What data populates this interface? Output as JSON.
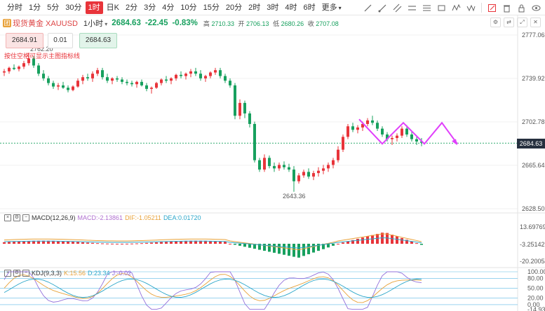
{
  "toolbar": {
    "timeframes": [
      "分时",
      "1分",
      "5分",
      "30分",
      "1时",
      "日K",
      "2分",
      "3分",
      "4分",
      "10分",
      "15分",
      "20分",
      "2时",
      "3时",
      "4时",
      "6时",
      "更多"
    ],
    "active_index": 4
  },
  "header": {
    "symbol": "现货黄金 XAUUSD",
    "interval": "1小时",
    "price": "2684.63",
    "change": "-22.45",
    "change_pct": "-0.83%",
    "high_label": "高",
    "high": "2710.33",
    "open_label": "开",
    "open": "2706.13",
    "low_label": "低",
    "low": "2680.26",
    "close_label": "收",
    "close": "2707.08"
  },
  "trade": {
    "sell": "2684.91",
    "qty": "0.01",
    "buy": "2684.63"
  },
  "hint": "按住空格可显示主图指标线",
  "price_axis": [
    "2777.06",
    "2739.92",
    "2702.78",
    "2665.64",
    "2628.50"
  ],
  "last_price_tag": "2684.63",
  "annotations": {
    "high": "2762.20",
    "low": "2643.36"
  },
  "macd": {
    "name": "MACD(12,26,9)",
    "macd": "MACD:-2.13861",
    "dif": "DIF:-1.05211",
    "dea": "DEA:0.01720",
    "axis": [
      "13.69769",
      "-3.25142",
      "-20.20054"
    ]
  },
  "kdj": {
    "name": "KDJ(9,3,3)",
    "k": "K:15.56",
    "d": "D:23.34",
    "j": "J:-0.02",
    "axis": [
      "100.00",
      "80.00",
      "50.00",
      "20.00",
      "0.00",
      "-14.93"
    ]
  },
  "colors": {
    "up": "#e8343a",
    "down": "#17a05e",
    "projection": "#e040fb"
  },
  "chart_data": {
    "type": "candlestick",
    "ylim": [
      2628.5,
      2777.06
    ],
    "candles": [
      [
        2745,
        2748,
        2742,
        2746
      ],
      [
        2746,
        2750,
        2744,
        2749
      ],
      [
        2749,
        2752,
        2747,
        2748
      ],
      [
        2748,
        2751,
        2746,
        2750
      ],
      [
        2750,
        2755,
        2748,
        2753
      ],
      [
        2753,
        2762,
        2751,
        2757
      ],
      [
        2757,
        2759,
        2749,
        2751
      ],
      [
        2751,
        2753,
        2742,
        2744
      ],
      [
        2744,
        2747,
        2738,
        2740
      ],
      [
        2740,
        2742,
        2734,
        2736
      ],
      [
        2736,
        2738,
        2731,
        2733
      ],
      [
        2733,
        2736,
        2730,
        2734
      ],
      [
        2734,
        2737,
        2731,
        2732
      ],
      [
        2732,
        2734,
        2728,
        2730
      ],
      [
        2730,
        2734,
        2729,
        2733
      ],
      [
        2733,
        2740,
        2732,
        2738
      ],
      [
        2738,
        2743,
        2735,
        2741
      ],
      [
        2741,
        2744,
        2738,
        2740
      ],
      [
        2740,
        2746,
        2737,
        2744
      ],
      [
        2744,
        2749,
        2742,
        2747
      ],
      [
        2747,
        2749,
        2739,
        2741
      ],
      [
        2741,
        2744,
        2736,
        2738
      ],
      [
        2738,
        2741,
        2735,
        2740
      ],
      [
        2740,
        2742,
        2737,
        2739
      ],
      [
        2739,
        2741,
        2735,
        2737
      ],
      [
        2737,
        2739,
        2734,
        2736
      ],
      [
        2736,
        2738,
        2733,
        2735
      ],
      [
        2735,
        2738,
        2732,
        2737
      ],
      [
        2737,
        2739,
        2733,
        2734
      ],
      [
        2734,
        2736,
        2729,
        2731
      ],
      [
        2731,
        2733,
        2727,
        2732
      ],
      [
        2732,
        2737,
        2731,
        2736
      ],
      [
        2736,
        2740,
        2734,
        2739
      ],
      [
        2739,
        2742,
        2736,
        2738
      ],
      [
        2738,
        2741,
        2735,
        2740
      ],
      [
        2740,
        2744,
        2738,
        2743
      ],
      [
        2743,
        2746,
        2740,
        2742
      ],
      [
        2742,
        2745,
        2739,
        2744
      ],
      [
        2744,
        2748,
        2741,
        2746
      ],
      [
        2746,
        2749,
        2742,
        2744
      ],
      [
        2744,
        2747,
        2738,
        2740
      ],
      [
        2740,
        2743,
        2737,
        2742
      ],
      [
        2742,
        2746,
        2740,
        2745
      ],
      [
        2745,
        2749,
        2743,
        2747
      ],
      [
        2747,
        2749,
        2740,
        2742
      ],
      [
        2742,
        2744,
        2736,
        2738
      ],
      [
        2738,
        2740,
        2732,
        2734
      ],
      [
        2734,
        2736,
        2705,
        2708
      ],
      [
        2708,
        2722,
        2705,
        2719
      ],
      [
        2719,
        2721,
        2706,
        2710
      ],
      [
        2710,
        2712,
        2698,
        2701
      ],
      [
        2701,
        2703,
        2668,
        2670
      ],
      [
        2670,
        2672,
        2660,
        2662
      ],
      [
        2662,
        2675,
        2660,
        2672
      ],
      [
        2672,
        2674,
        2663,
        2665
      ],
      [
        2665,
        2668,
        2660,
        2663
      ],
      [
        2663,
        2668,
        2661,
        2666
      ],
      [
        2666,
        2669,
        2662,
        2664
      ],
      [
        2664,
        2667,
        2660,
        2662
      ],
      [
        2662,
        2665,
        2643,
        2652
      ],
      [
        2652,
        2659,
        2650,
        2657
      ],
      [
        2657,
        2662,
        2655,
        2660
      ],
      [
        2660,
        2663,
        2654,
        2656
      ],
      [
        2656,
        2661,
        2653,
        2659
      ],
      [
        2659,
        2664,
        2656,
        2661
      ],
      [
        2661,
        2666,
        2658,
        2663
      ],
      [
        2663,
        2668,
        2660,
        2666
      ],
      [
        2666,
        2672,
        2663,
        2670
      ],
      [
        2670,
        2682,
        2668,
        2679
      ],
      [
        2679,
        2692,
        2677,
        2690
      ],
      [
        2690,
        2701,
        2688,
        2699
      ],
      [
        2699,
        2702,
        2694,
        2696
      ],
      [
        2696,
        2700,
        2693,
        2698
      ],
      [
        2698,
        2703,
        2695,
        2701
      ],
      [
        2701,
        2706,
        2699,
        2704
      ],
      [
        2704,
        2708,
        2700,
        2702
      ],
      [
        2702,
        2704,
        2695,
        2697
      ],
      [
        2697,
        2699,
        2690,
        2692
      ],
      [
        2692,
        2694,
        2686,
        2688
      ],
      [
        2688,
        2691,
        2683,
        2689
      ],
      [
        2689,
        2693,
        2686,
        2691
      ],
      [
        2691,
        2699,
        2689,
        2697
      ],
      [
        2697,
        2700,
        2690,
        2692
      ],
      [
        2692,
        2695,
        2686,
        2688
      ],
      [
        2688,
        2690,
        2683,
        2686
      ],
      [
        2686,
        2689,
        2682,
        2685
      ]
    ],
    "projection": [
      [
        2700,
        2705
      ],
      [
        2686,
        2684
      ],
      [
        2702,
        2702
      ],
      [
        2686,
        2684
      ],
      [
        2702,
        2702
      ],
      [
        2686,
        2684
      ]
    ]
  }
}
